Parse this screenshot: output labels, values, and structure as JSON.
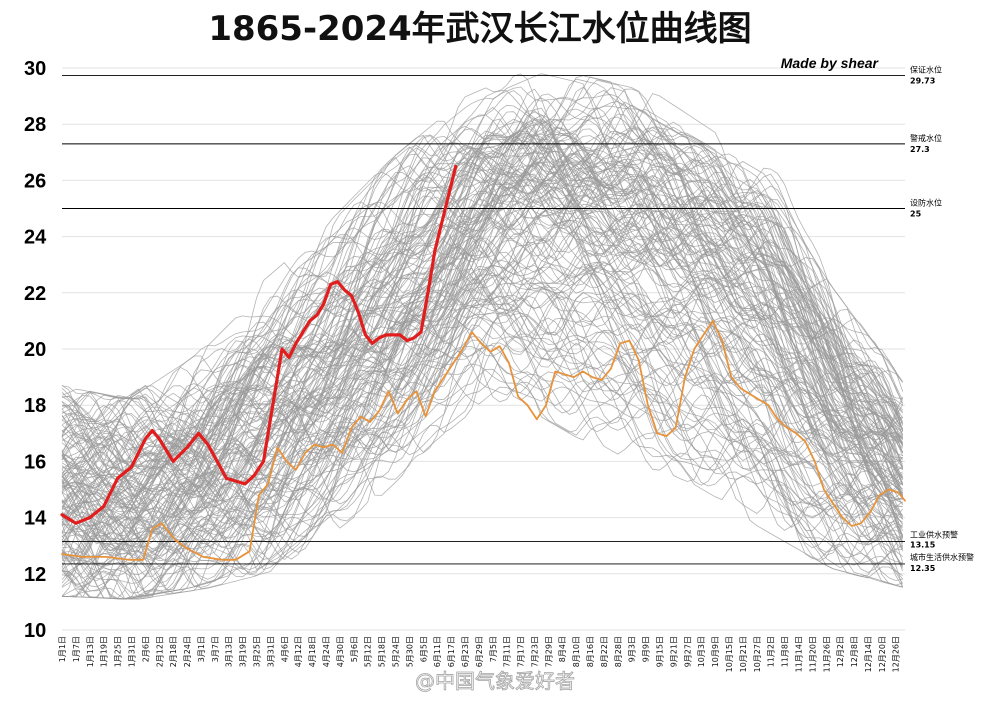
{
  "chart_data": {
    "type": "line",
    "title": "1865-2024年武汉长江水位曲线图",
    "credit": "Made by shear",
    "watermark": "@中国气象爱好者",
    "ylim": [
      10,
      30
    ],
    "y_ticks": [
      10,
      12,
      14,
      16,
      18,
      20,
      22,
      24,
      26,
      28,
      30
    ],
    "x_range_days": [
      1,
      365
    ],
    "x_tick_labels": [
      "1月1日",
      "1月7日",
      "1月13日",
      "1月19日",
      "1月25日",
      "1月31日",
      "2月6日",
      "2月12日",
      "2月18日",
      "2月24日",
      "3月1日",
      "3月7日",
      "3月13日",
      "3月19日",
      "3月25日",
      "3月31日",
      "4月6日",
      "4月12日",
      "4月18日",
      "4月24日",
      "4月30日",
      "5月6日",
      "5月12日",
      "5月18日",
      "5月24日",
      "5月30日",
      "6月5日",
      "6月11日",
      "6月17日",
      "6月23日",
      "6月29日",
      "7月5日",
      "7月11日",
      "7月17日",
      "7月23日",
      "7月29日",
      "8月4日",
      "8月10日",
      "8月16日",
      "8月22日",
      "8月28日",
      "9月3日",
      "9月9日",
      "9月15日",
      "9月21日",
      "9月27日",
      "10月3日",
      "10月9日",
      "10月15日",
      "10月21日",
      "10月27日",
      "11月2日",
      "11月8日",
      "11月14日",
      "11月20日",
      "11月26日",
      "12月2日",
      "12月8日",
      "12月14日",
      "12月20日",
      "12月26日"
    ],
    "reference_lines": [
      {
        "name": "保证水位",
        "value": 29.73,
        "label": "29.73"
      },
      {
        "name": "警戒水位",
        "value": 27.3,
        "label": "27.3"
      },
      {
        "name": "设防水位",
        "value": 25,
        "label": "25"
      },
      {
        "name": "工业供水预警",
        "value": 13.15,
        "label": "13.15"
      },
      {
        "name": "城市生活供水预警",
        "value": 12.35,
        "label": "12.35"
      }
    ],
    "historical_series_count": 159,
    "historical_envelope": {
      "x": [
        1,
        31,
        60,
        91,
        121,
        152,
        182,
        213,
        244,
        274,
        305,
        335,
        365
      ],
      "low": [
        11.5,
        11.4,
        11.8,
        12.5,
        14.5,
        17.0,
        19.0,
        18.0,
        16.5,
        15.5,
        14.0,
        12.5,
        11.8
      ],
      "high": [
        18.5,
        18.0,
        19.5,
        22.0,
        24.0,
        26.5,
        28.5,
        29.6,
        29.0,
        27.5,
        26.0,
        22.0,
        18.5
      ],
      "median": [
        14.5,
        14.2,
        15.0,
        16.8,
        19.0,
        21.5,
        24.5,
        25.2,
        24.5,
        23.5,
        21.0,
        17.5,
        15.0
      ]
    },
    "series": [
      {
        "color": "#e11d1d",
        "x": [
          1,
          7,
          13,
          19,
          25,
          31,
          37,
          40,
          43,
          49,
          55,
          60,
          64,
          68,
          72,
          76,
          80,
          84,
          88,
          90,
          93,
          96,
          99,
          102,
          105,
          108,
          111,
          114,
          117,
          120,
          123,
          126,
          129,
          132,
          135,
          138,
          141,
          144,
          147,
          150,
          153,
          156,
          159,
          162,
          165,
          168,
          171,
          174,
          177,
          180,
          183
        ],
        "values": [
          14.1,
          13.8,
          14.0,
          14.4,
          15.4,
          15.8,
          16.8,
          17.1,
          16.8,
          16.0,
          16.5,
          17.0,
          16.6,
          16.0,
          15.4,
          15.3,
          15.2,
          15.5,
          16.0,
          17.0,
          18.5,
          20.0,
          19.7,
          20.2,
          20.6,
          21.0,
          21.2,
          21.6,
          22.3,
          22.4,
          22.1,
          21.9,
          21.3,
          20.5,
          20.2,
          20.4,
          20.5,
          20.5,
          20.5,
          20.3,
          20.4,
          20.6,
          22.0,
          23.5,
          24.5,
          25.5,
          26.5,
          null,
          null,
          null,
          null
        ]
      },
      {
        "color": "#e8923a",
        "x": [
          1,
          10,
          20,
          30,
          36,
          40,
          44,
          50,
          55,
          62,
          70,
          76,
          82,
          86,
          90,
          94,
          98,
          102,
          106,
          110,
          114,
          118,
          122,
          126,
          130,
          134,
          138,
          142,
          146,
          150,
          154,
          158,
          162,
          166,
          170,
          174,
          178,
          182,
          186,
          190,
          194,
          198,
          202,
          206,
          210,
          214,
          218,
          222,
          226,
          230,
          234,
          238,
          242,
          246,
          250,
          254,
          258,
          262,
          266,
          270,
          274,
          278,
          282,
          286,
          290,
          294,
          298,
          302,
          306,
          310,
          314,
          318,
          322,
          326,
          330,
          334,
          338,
          342,
          346,
          350,
          354,
          358,
          362,
          365
        ],
        "values": [
          12.7,
          12.6,
          12.6,
          12.5,
          12.5,
          13.6,
          13.8,
          13.2,
          12.9,
          12.6,
          12.5,
          12.5,
          12.8,
          14.8,
          15.2,
          16.5,
          16.0,
          15.7,
          16.3,
          16.6,
          16.5,
          16.6,
          16.3,
          17.2,
          17.6,
          17.4,
          17.8,
          18.5,
          17.7,
          18.2,
          18.5,
          17.6,
          18.5,
          19.0,
          19.5,
          20.0,
          20.6,
          20.2,
          19.9,
          20.1,
          19.5,
          18.3,
          18.0,
          17.5,
          18.0,
          19.2,
          19.1,
          19.0,
          19.2,
          19.0,
          18.9,
          19.3,
          20.2,
          20.3,
          19.6,
          18.0,
          17.0,
          16.9,
          17.2,
          19.0,
          20.0,
          20.5,
          21.0,
          20.3,
          19.0,
          18.6,
          18.4,
          18.2,
          18.0,
          17.5,
          17.2,
          17.0,
          16.7,
          16.0,
          15.0,
          14.5,
          14.0,
          13.7,
          13.8,
          14.2,
          14.8,
          15.0,
          14.9,
          14.6
        ]
      }
    ]
  },
  "colors": {
    "history": "#9a9a9a",
    "highlight": "#e11d1d",
    "dry_year": "#e8923a",
    "grid": "#e2e2e2",
    "reference": "#000000"
  }
}
